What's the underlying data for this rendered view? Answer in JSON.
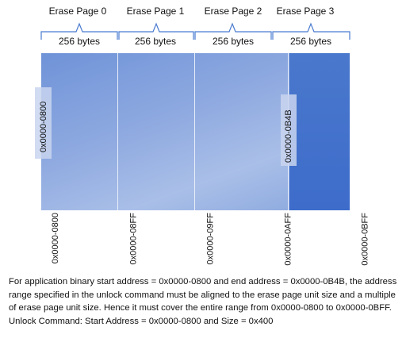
{
  "pages": [
    {
      "name": "Erase Page 0",
      "size": "256 bytes"
    },
    {
      "name": "Erase Page 1",
      "size": "256 bytes"
    },
    {
      "name": "Erase Page 2",
      "size": "256 bytes"
    },
    {
      "name": "Erase Page 3",
      "size": "256 bytes"
    }
  ],
  "markers": {
    "start": "0x0000-0800",
    "end": "0x0000-0B4B"
  },
  "addresses": [
    "0x0000-0800",
    "0x0000-08FF",
    "0x0000-09FF",
    "0x0000-0AFF",
    "0x0000-0BFF"
  ],
  "description": {
    "paragraph": "For application binary start address = 0x0000-0800 and end address = 0x0000-0B4B, the address range specified in the unlock command must be aligned to the erase page unit size and a multiple of erase page unit size. Hence  it must cover the entire range from 0x0000-0800 to 0x0000-0BFF.",
    "command": "Unlock Command: Start Address = 0x0000-0800 and Size = 0x400"
  },
  "colors": {
    "memory_fill": "#8ea9e0",
    "used_region": "#3d6ccb",
    "brace": "#4a7bd0"
  }
}
